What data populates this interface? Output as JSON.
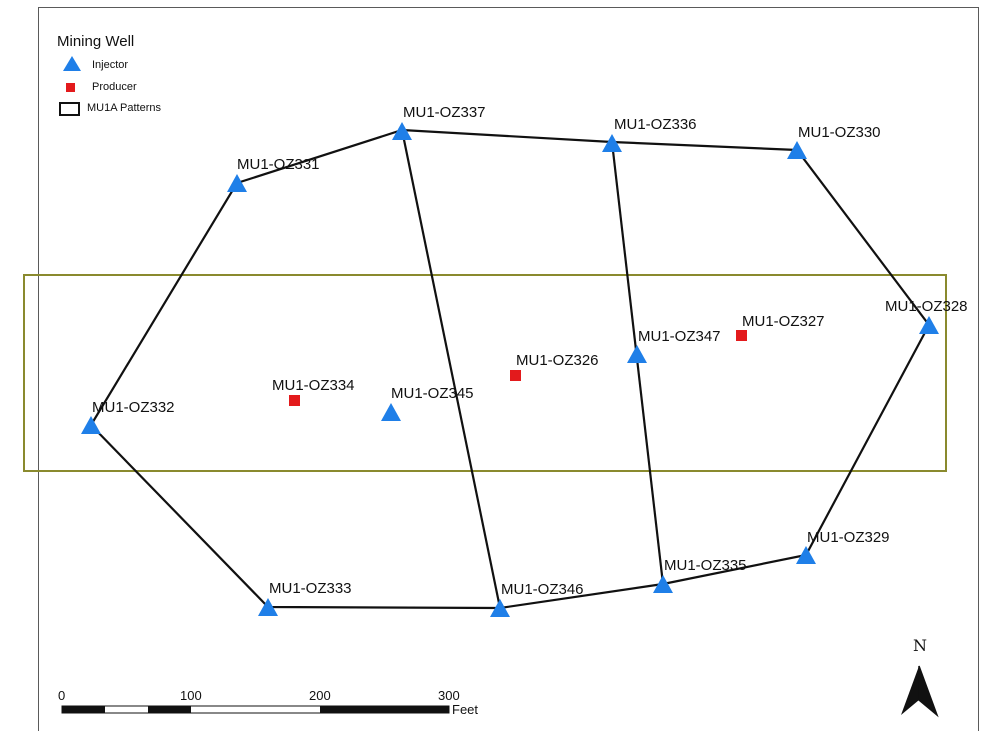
{
  "legend": {
    "title": "Mining Well",
    "items": [
      {
        "label": "Injector",
        "symbol": "blue-triangle",
        "color": "#1f7fe8"
      },
      {
        "label": "Producer",
        "symbol": "red-square",
        "color": "#e31a1c"
      },
      {
        "label": "MU1A Patterns",
        "symbol": "outline-rectangle",
        "color": "#111111"
      }
    ]
  },
  "wells": [
    {
      "name": "MU1-OZ337",
      "type": "injector"
    },
    {
      "name": "MU1-OZ336",
      "type": "injector"
    },
    {
      "name": "MU1-OZ330",
      "type": "injector"
    },
    {
      "name": "MU1-OZ331",
      "type": "injector"
    },
    {
      "name": "MU1-OZ328",
      "type": "injector"
    },
    {
      "name": "MU1-OZ347",
      "type": "injector"
    },
    {
      "name": "MU1-OZ327",
      "type": "producer"
    },
    {
      "name": "MU1-OZ326",
      "type": "producer"
    },
    {
      "name": "MU1-OZ334",
      "type": "producer"
    },
    {
      "name": "MU1-OZ345",
      "type": "injector"
    },
    {
      "name": "MU1-OZ332",
      "type": "injector"
    },
    {
      "name": "MU1-OZ329",
      "type": "injector"
    },
    {
      "name": "MU1-OZ335",
      "type": "injector"
    },
    {
      "name": "MU1-OZ333",
      "type": "injector"
    },
    {
      "name": "MU1-OZ346",
      "type": "injector"
    }
  ],
  "scale_bar": {
    "ticks": [
      "0",
      "100",
      "200",
      "300"
    ],
    "unit": "Feet"
  },
  "north_arrow": {
    "label": "N"
  },
  "colors": {
    "injector": "#1f7fe8",
    "producer": "#e31a1c",
    "pattern_line": "#111111",
    "highlight_box": "#8a8a2e"
  }
}
